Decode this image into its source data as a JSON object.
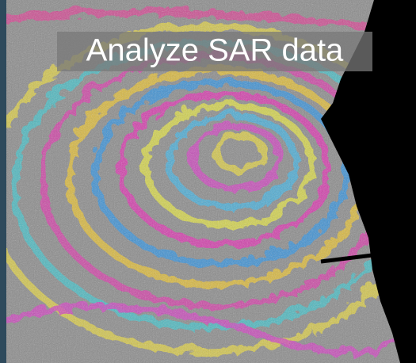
{
  "caption": "Analyze SAR data"
}
